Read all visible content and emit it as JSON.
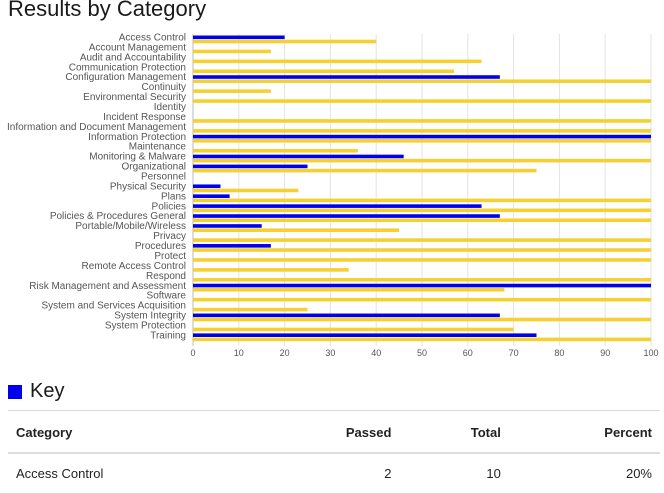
{
  "page": {
    "title": "Results by Category"
  },
  "key": {
    "title": "Key",
    "color": "#0000ee"
  },
  "table": {
    "headers": {
      "category": "Category",
      "passed": "Passed",
      "total": "Total",
      "percent": "Percent"
    },
    "rows": [
      {
        "category": "Access Control",
        "passed": "2",
        "total": "10",
        "percent": "20%"
      }
    ]
  },
  "chart_data": {
    "type": "bar",
    "orientation": "horizontal",
    "colors": {
      "achieved": "#0000ee",
      "target": "#f5d033"
    },
    "xlim": [
      0,
      100
    ],
    "xticks": [
      0,
      10,
      20,
      30,
      40,
      50,
      60,
      70,
      80,
      90,
      100
    ],
    "grid": true,
    "categories": [
      "Access Control",
      "Account Management",
      "Audit and Accountability",
      "Communication Protection",
      "Configuration Management",
      "Continuity",
      "Environmental Security",
      "Identity",
      "Incident Response",
      "Information and Document Management",
      "Information Protection",
      "Maintenance",
      "Monitoring & Malware",
      "Organizational",
      "Personnel",
      "Physical Security",
      "Plans",
      "Policies",
      "Policies & Procedures General",
      "Portable/Mobile/Wireless",
      "Privacy",
      "Procedures",
      "Protect",
      "Remote Access Control",
      "Respond",
      "Risk Management and Assessment",
      "Software",
      "System and Services Acquisition",
      "System Integrity",
      "System Protection",
      "Training"
    ],
    "series": [
      {
        "values": [
          20,
          0,
          0,
          0,
          67,
          0,
          0,
          0,
          0,
          0,
          100,
          0,
          46,
          25,
          0,
          6,
          8,
          63,
          67,
          15,
          0,
          17,
          0,
          0,
          0,
          100,
          0,
          0,
          67,
          0,
          75
        ]
      },
      {
        "values": [
          40,
          17,
          63,
          57,
          100,
          17,
          100,
          0,
          100,
          100,
          100,
          36,
          100,
          75,
          0,
          23,
          100,
          100,
          100,
          45,
          100,
          100,
          100,
          34,
          100,
          68,
          100,
          25,
          100,
          70,
          100
        ]
      }
    ]
  }
}
